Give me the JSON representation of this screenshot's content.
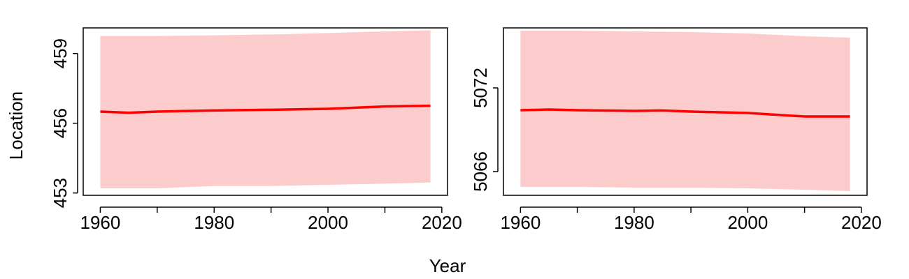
{
  "figure": {
    "xlabel": "Year",
    "ylabel": "Location"
  },
  "chart_data": [
    {
      "type": "line",
      "xlim": [
        1957,
        2021
      ],
      "ylim": [
        452.9,
        460.1
      ],
      "x_ticks": [
        1960,
        1980,
        2000,
        2020
      ],
      "x_minor_ticks": [
        1970,
        1990,
        2010
      ],
      "y_ticks": [
        453,
        456,
        459
      ],
      "x_tick_labels": [
        "1960",
        "1980",
        "2000",
        "2020"
      ],
      "y_tick_labels": [
        "453",
        "456",
        "459"
      ],
      "series": [
        {
          "kind": "band",
          "color": "#fccbcb",
          "x": [
            1960,
            1970,
            1980,
            1990,
            2000,
            2010,
            2018
          ],
          "lower": [
            453.2,
            453.2,
            453.3,
            453.3,
            453.35,
            453.4,
            453.45
          ],
          "upper": [
            459.75,
            459.75,
            459.78,
            459.82,
            459.88,
            459.95,
            460.0
          ]
        },
        {
          "kind": "line",
          "color": "#ff0000",
          "x": [
            1960,
            1965,
            1970,
            1980,
            1990,
            2000,
            2010,
            2018
          ],
          "y": [
            456.5,
            456.45,
            456.5,
            456.55,
            456.58,
            456.62,
            456.72,
            456.75
          ]
        }
      ]
    },
    {
      "type": "line",
      "xlim": [
        1957,
        2021
      ],
      "ylim": [
        5064.3,
        5076.3
      ],
      "x_ticks": [
        1960,
        1980,
        2000,
        2020
      ],
      "x_minor_ticks": [
        1970,
        1990,
        2010
      ],
      "y_ticks": [
        5066,
        5072
      ],
      "x_tick_labels": [
        "1960",
        "1980",
        "2000",
        "2020"
      ],
      "y_tick_labels": [
        "5066",
        "5072"
      ],
      "series": [
        {
          "kind": "band",
          "color": "#fccbcb",
          "x": [
            1960,
            1970,
            1980,
            1990,
            2000,
            2010,
            2018
          ],
          "lower": [
            5064.9,
            5064.9,
            5064.85,
            5064.85,
            5064.8,
            5064.7,
            5064.6
          ],
          "upper": [
            5076.1,
            5076.1,
            5076.05,
            5076.0,
            5075.9,
            5075.7,
            5075.6
          ]
        },
        {
          "kind": "line",
          "color": "#ff0000",
          "x": [
            1960,
            1965,
            1970,
            1980,
            1985,
            1990,
            2000,
            2010,
            2018
          ],
          "y": [
            5070.4,
            5070.45,
            5070.4,
            5070.35,
            5070.38,
            5070.3,
            5070.2,
            5069.95,
            5069.95
          ]
        }
      ]
    }
  ]
}
